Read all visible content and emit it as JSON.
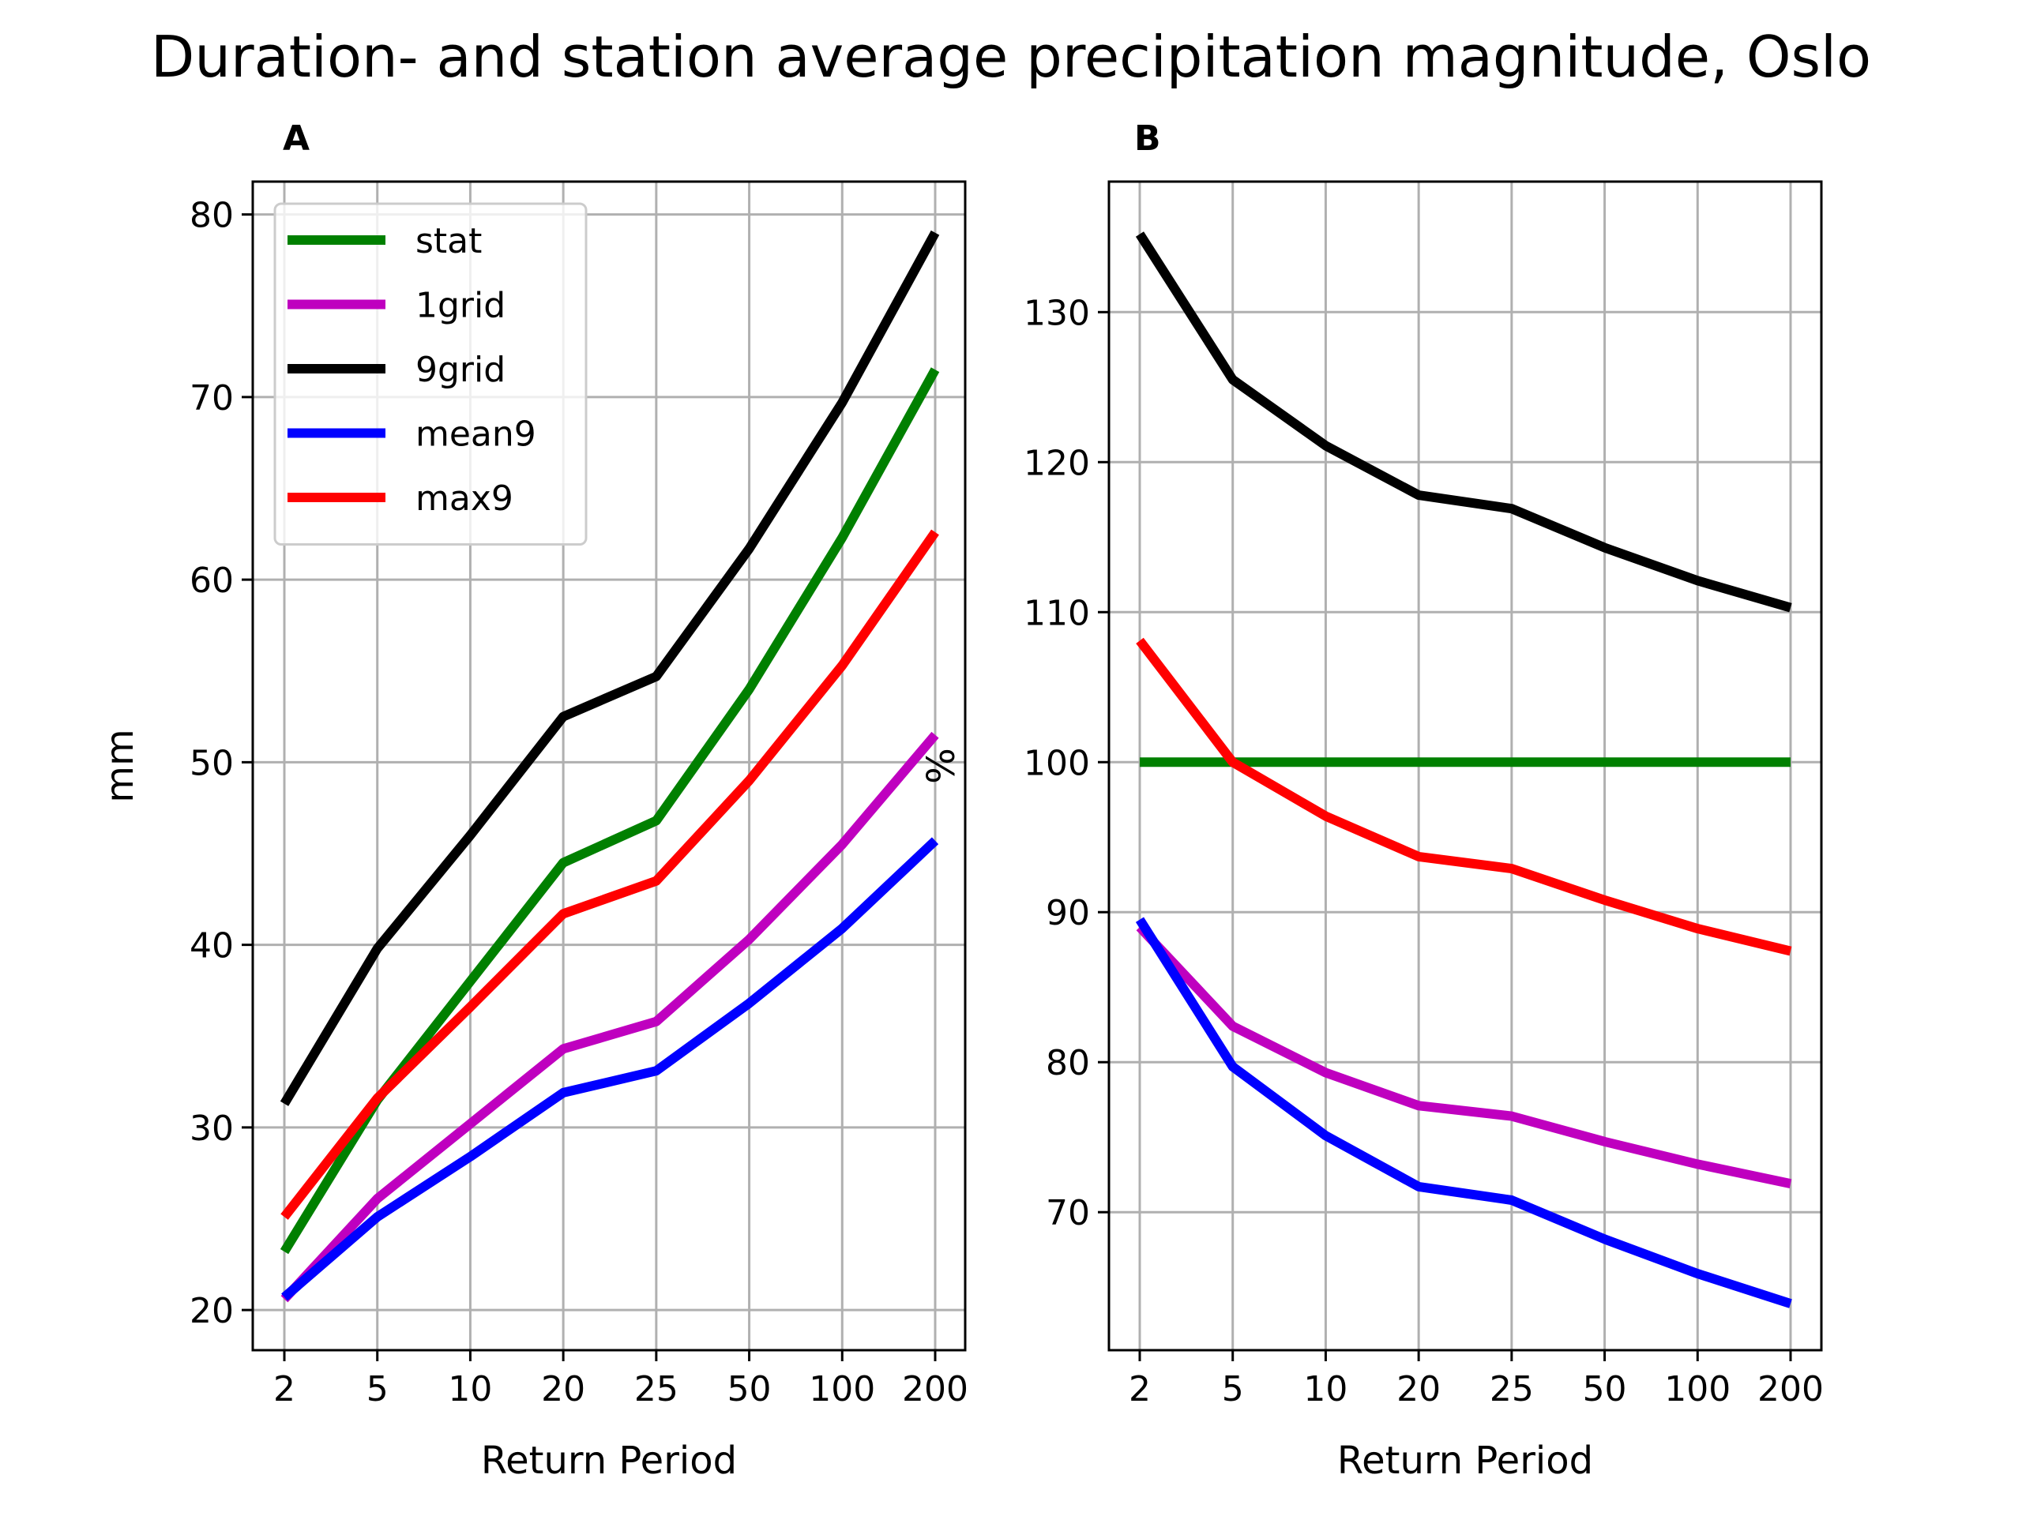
{
  "figure": {
    "title": "Duration- and station average precipitation magnitude, Oslo"
  },
  "chart_data": [
    {
      "type": "line",
      "panel_label": "A",
      "xlabel": "Return Period",
      "ylabel": "mm",
      "categories": [
        "2",
        "5",
        "10",
        "20",
        "25",
        "50",
        "100",
        "200"
      ],
      "ylim": [
        17.8,
        81.8
      ],
      "yticks": [
        20,
        30,
        40,
        50,
        60,
        70,
        80
      ],
      "grid": true,
      "legend": "top-left",
      "series": [
        {
          "name": "stat",
          "color": "#008000",
          "values": [
            23.2,
            31.5,
            38.0,
            44.5,
            46.8,
            54.0,
            62.3,
            71.5
          ]
        },
        {
          "name": "1grid",
          "color": "#bf00bf",
          "values": [
            20.6,
            26.1,
            30.2,
            34.3,
            35.8,
            40.3,
            45.5,
            51.5
          ]
        },
        {
          "name": "9grid",
          "color": "#000000",
          "values": [
            31.3,
            39.8,
            46.0,
            52.5,
            54.7,
            61.7,
            69.7,
            79.0
          ]
        },
        {
          "name": "mean9",
          "color": "#0000ff",
          "values": [
            20.7,
            25.1,
            28.4,
            31.9,
            33.1,
            36.8,
            40.9,
            45.7
          ]
        },
        {
          "name": "max9",
          "color": "#ff0000",
          "values": [
            25.1,
            31.6,
            36.6,
            41.7,
            43.5,
            49.0,
            55.3,
            62.6
          ]
        }
      ]
    },
    {
      "type": "line",
      "panel_label": "B",
      "xlabel": "Return Period",
      "ylabel": "%",
      "categories": [
        "2",
        "5",
        "10",
        "20",
        "25",
        "50",
        "100",
        "200"
      ],
      "ylim": [
        60.8,
        138.7
      ],
      "yticks": [
        70,
        80,
        90,
        100,
        110,
        120,
        130
      ],
      "grid": true,
      "series": [
        {
          "name": "stat",
          "color": "#008000",
          "values": [
            100,
            100,
            100,
            100,
            100,
            100,
            100,
            100
          ]
        },
        {
          "name": "1grid",
          "color": "#bf00bf",
          "values": [
            89.0,
            82.4,
            79.3,
            77.1,
            76.4,
            74.7,
            73.2,
            71.9
          ]
        },
        {
          "name": "9grid",
          "color": "#000000",
          "values": [
            135.2,
            125.5,
            121.1,
            117.8,
            116.9,
            114.3,
            112.1,
            110.3
          ]
        },
        {
          "name": "mean9",
          "color": "#0000ff",
          "values": [
            89.5,
            79.7,
            75.1,
            71.7,
            70.8,
            68.2,
            65.9,
            63.9
          ]
        },
        {
          "name": "max9",
          "color": "#ff0000",
          "values": [
            108.1,
            100.0,
            96.4,
            93.7,
            92.9,
            90.8,
            88.9,
            87.4
          ]
        }
      ]
    }
  ]
}
